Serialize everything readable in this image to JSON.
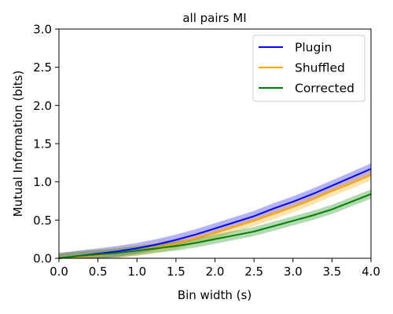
{
  "chart_data": {
    "type": "line",
    "title": "all pairs MI",
    "xlabel": "Bin width (s)",
    "ylabel": "Mutual Information (bits)",
    "xlim": [
      0.0,
      4.0
    ],
    "ylim": [
      0.0,
      3.0
    ],
    "xticks": [
      "0.0",
      "0.5",
      "1.0",
      "1.5",
      "2.0",
      "2.5",
      "3.0",
      "3.5",
      "4.0"
    ],
    "yticks": [
      "0.0",
      "0.5",
      "1.0",
      "1.5",
      "2.0",
      "2.5",
      "3.0"
    ],
    "grid": false,
    "legend_position": "top-right",
    "x": [
      0.0,
      0.25,
      0.5,
      0.75,
      1.0,
      1.25,
      1.5,
      1.75,
      2.0,
      2.25,
      2.5,
      2.75,
      3.0,
      3.25,
      3.5,
      3.75,
      4.0
    ],
    "series": [
      {
        "name": "Plugin",
        "color": "#0000ff",
        "values": [
          0.0,
          0.03,
          0.06,
          0.09,
          0.13,
          0.18,
          0.24,
          0.31,
          0.39,
          0.47,
          0.55,
          0.65,
          0.74,
          0.84,
          0.95,
          1.06,
          1.17
        ],
        "band": 0.07
      },
      {
        "name": "Shuffled",
        "color": "#ffa500",
        "values": [
          0.0,
          0.02,
          0.04,
          0.07,
          0.1,
          0.14,
          0.19,
          0.26,
          0.33,
          0.41,
          0.49,
          0.58,
          0.67,
          0.77,
          0.88,
          0.98,
          1.09
        ],
        "band": 0.07
      },
      {
        "name": "Corrected",
        "color": "#008000",
        "values": [
          0.0,
          0.03,
          0.05,
          0.07,
          0.1,
          0.13,
          0.16,
          0.2,
          0.25,
          0.3,
          0.35,
          0.42,
          0.49,
          0.56,
          0.64,
          0.74,
          0.84
        ],
        "band": 0.06
      }
    ]
  }
}
